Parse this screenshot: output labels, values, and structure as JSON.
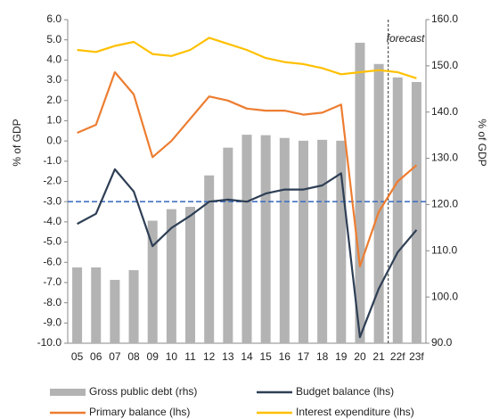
{
  "chart_data": {
    "type": "bar_line",
    "categories": [
      "05",
      "06",
      "07",
      "08",
      "09",
      "10",
      "11",
      "12",
      "13",
      "14",
      "15",
      "16",
      "17",
      "18",
      "19",
      "20",
      "21",
      "22f",
      "23f"
    ],
    "series": [
      {
        "name": "Gross public debt (rhs)",
        "type": "bar",
        "axis": "y2",
        "color": "#b3b3b3",
        "values": [
          106.4,
          106.4,
          103.7,
          105.8,
          116.5,
          119.0,
          119.5,
          126.3,
          132.3,
          135.1,
          135.0,
          134.4,
          133.8,
          134.0,
          133.8,
          155.0,
          150.4,
          147.5,
          146.5
        ]
      },
      {
        "name": "Budget balance (lhs)",
        "type": "line",
        "color": "#2e3f55",
        "values": [
          -4.1,
          -3.6,
          -1.4,
          -2.5,
          -5.2,
          -4.3,
          -3.7,
          -3.0,
          -2.9,
          -3.0,
          -2.6,
          -2.4,
          -2.4,
          -2.2,
          -1.6,
          -9.7,
          -7.3,
          -5.5,
          -4.4
        ]
      },
      {
        "name": "Primary balance (lhs)",
        "type": "line",
        "color": "#ed7d31",
        "values": [
          0.4,
          0.8,
          3.4,
          2.3,
          -0.8,
          0.0,
          1.1,
          2.2,
          2.0,
          1.6,
          1.5,
          1.5,
          1.3,
          1.4,
          1.8,
          -6.2,
          -3.5,
          -2.0,
          -1.2
        ]
      },
      {
        "name": "Interest expenditure (lhs)",
        "type": "line",
        "color": "#ffc000",
        "values": [
          4.5,
          4.4,
          4.7,
          4.9,
          4.3,
          4.2,
          4.5,
          5.1,
          4.8,
          4.5,
          4.1,
          3.9,
          3.8,
          3.6,
          3.3,
          3.4,
          3.5,
          3.4,
          3.1
        ]
      }
    ],
    "ylabel": "% of GDP",
    "y2label": "% of GDP",
    "ylim": [
      -10,
      6
    ],
    "yticks": [
      {
        "value": 6,
        "label": "6.0"
      },
      {
        "value": 5,
        "label": "5.0"
      },
      {
        "value": 4,
        "label": "4.0"
      },
      {
        "value": 3,
        "label": "3.0"
      },
      {
        "value": 2,
        "label": "2.0"
      },
      {
        "value": 1,
        "label": "1.0"
      },
      {
        "value": 0,
        "label": "0.0"
      },
      {
        "value": -1,
        "label": "-1.0"
      },
      {
        "value": -2,
        "label": "-2.0"
      },
      {
        "value": -3,
        "label": "-3.0"
      },
      {
        "value": -4,
        "label": "-4.0"
      },
      {
        "value": -5,
        "label": "-5.0"
      },
      {
        "value": -6,
        "label": "-6.0"
      },
      {
        "value": -7,
        "label": "-7.0"
      },
      {
        "value": -8,
        "label": "-8.0"
      },
      {
        "value": -9,
        "label": "-9.0"
      },
      {
        "value": -10,
        "label": "-10.0"
      }
    ],
    "y2lim": [
      90,
      160
    ],
    "y2ticks": [
      {
        "value": 160,
        "label": "160.0"
      },
      {
        "value": 150,
        "label": "150.0"
      },
      {
        "value": 140,
        "label": "140.0"
      },
      {
        "value": 130,
        "label": "130.0"
      },
      {
        "value": 120,
        "label": "120.0"
      },
      {
        "value": 110,
        "label": "110.0"
      },
      {
        "value": 100,
        "label": "100.0"
      },
      {
        "value": 90,
        "label": "90.0"
      }
    ],
    "reference_line": {
      "value": -3,
      "color": "#4472c4"
    },
    "annotation": "forecast"
  }
}
